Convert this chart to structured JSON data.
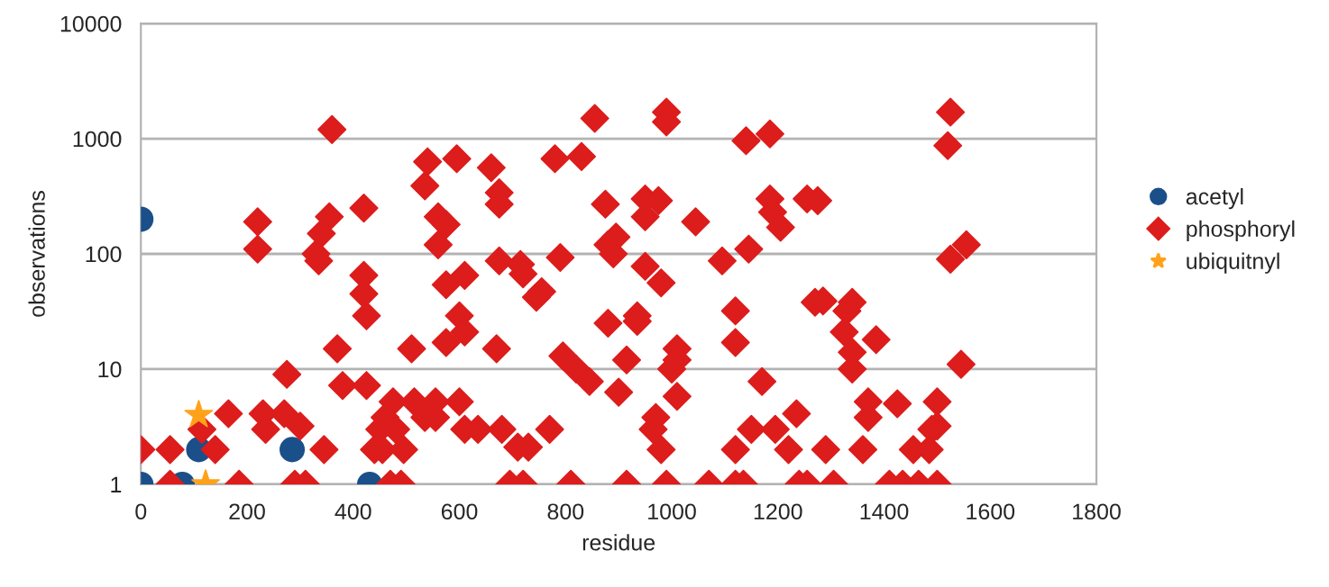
{
  "chart_data": {
    "type": "scatter",
    "xlabel": "residue",
    "ylabel": "observations",
    "xlim": [
      0,
      1800
    ],
    "xticks": [
      0,
      200,
      400,
      600,
      800,
      1000,
      1200,
      1400,
      1600,
      1800
    ],
    "ylim": [
      1,
      10000
    ],
    "yticks": [
      1,
      10,
      100,
      1000,
      10000
    ],
    "log": "y",
    "grid": "y",
    "legend": "right",
    "series": [
      {
        "name": "acetyl",
        "color": "#1b4f8a",
        "marker": "circle",
        "x": [
          0,
          0,
          78,
          109,
          285,
          431
        ],
        "values": [
          200,
          1,
          1,
          2,
          2,
          1
        ]
      },
      {
        "name": "phosphoryl",
        "color": "#dd1c1c",
        "marker": "diamond",
        "x": [
          0,
          55,
          140,
          55,
          185,
          165,
          115,
          275,
          230,
          270,
          235,
          300,
          345,
          290,
          310,
          370,
          380,
          425,
          220,
          220,
          360,
          355,
          340,
          330,
          335,
          420,
          420,
          420,
          425,
          510,
          540,
          535,
          595,
          560,
          575,
          560,
          575,
          610,
          600,
          610,
          575,
          475,
          515,
          555,
          600,
          460,
          535,
          555,
          450,
          480,
          440,
          455,
          495,
          470,
          490,
          610,
          855,
          990,
          990,
          1140,
          1185,
          660,
          780,
          830,
          675,
          675,
          875,
          950,
          975,
          950,
          1045,
          1185,
          1190,
          1205,
          1255,
          675,
          715,
          720,
          755,
          745,
          790,
          880,
          890,
          895,
          950,
          980,
          1095,
          1145,
          670,
          880,
          935,
          935,
          1120,
          1120,
          795,
          820,
          845,
          915,
          1010,
          1010,
          1000,
          900,
          1010,
          1170,
          635,
          680,
          710,
          730,
          770,
          970,
          965,
          980,
          1120,
          1150,
          1195,
          1220,
          695,
          720,
          810,
          915,
          990,
          1070,
          1120,
          1135,
          1240,
          1525,
          1520,
          1275,
          1555,
          1525,
          1270,
          1285,
          1340,
          1330,
          1325,
          1385,
          1340,
          1340,
          1545,
          1235,
          1370,
          1370,
          1425,
          1500,
          1500,
          1490,
          1290,
          1360,
          1455,
          1485,
          1255,
          1305,
          1410,
          1435,
          1465,
          1500
        ],
        "values": [
          2,
          2,
          2,
          1,
          1,
          4.1,
          3,
          9,
          4.1,
          4.1,
          3,
          3.2,
          2,
          1,
          1,
          15,
          7.2,
          7.2,
          190,
          110,
          1200,
          210,
          150,
          100,
          87,
          250,
          65,
          45,
          29,
          15,
          630,
          390,
          670,
          210,
          180,
          120,
          54,
          65,
          29,
          21,
          17,
          5.2,
          5.2,
          5.2,
          5.2,
          3.8,
          3.8,
          3.8,
          3,
          3,
          2,
          2,
          2,
          1,
          1,
          3,
          1500,
          1700,
          1400,
          960,
          1100,
          560,
          670,
          700,
          340,
          270,
          270,
          300,
          290,
          210,
          190,
          300,
          230,
          170,
          300,
          87,
          81,
          67,
          47,
          42,
          93,
          120,
          100,
          140,
          78,
          56,
          87,
          110,
          15,
          25,
          29,
          26,
          32,
          17,
          13,
          10,
          7.8,
          12,
          15,
          12,
          10,
          6.3,
          5.8,
          7.8,
          3,
          3,
          2.1,
          2.1,
          3,
          3.8,
          3,
          2,
          2,
          3,
          3,
          2,
          1,
          1,
          1,
          1,
          1,
          1,
          1,
          1,
          1,
          1700,
          870,
          290,
          120,
          90,
          38,
          39,
          38,
          32,
          21,
          18,
          14,
          10,
          11,
          4.1,
          5.2,
          3.8,
          5,
          5.2,
          3.2,
          3,
          2,
          2,
          2,
          2,
          1,
          1,
          1,
          1,
          1,
          1
        ]
      },
      {
        "name": "ubiquitnyl",
        "color": "#ffa21a",
        "marker": "star",
        "x": [
          109,
          122
        ],
        "values": [
          4,
          1
        ]
      }
    ]
  }
}
